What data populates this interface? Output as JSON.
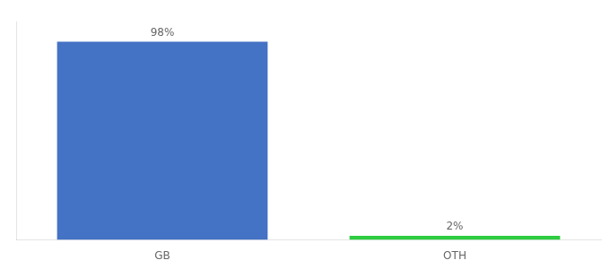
{
  "chart_data": {
    "type": "bar",
    "categories": [
      "GB",
      "OTH"
    ],
    "values": [
      98,
      2
    ],
    "value_labels": [
      "98%",
      "2%"
    ],
    "colors": [
      "#4472c4",
      "#2ecc40"
    ],
    "ylim": [
      0,
      108
    ],
    "grid": false,
    "data_labels": true,
    "tick_labels": "x"
  }
}
